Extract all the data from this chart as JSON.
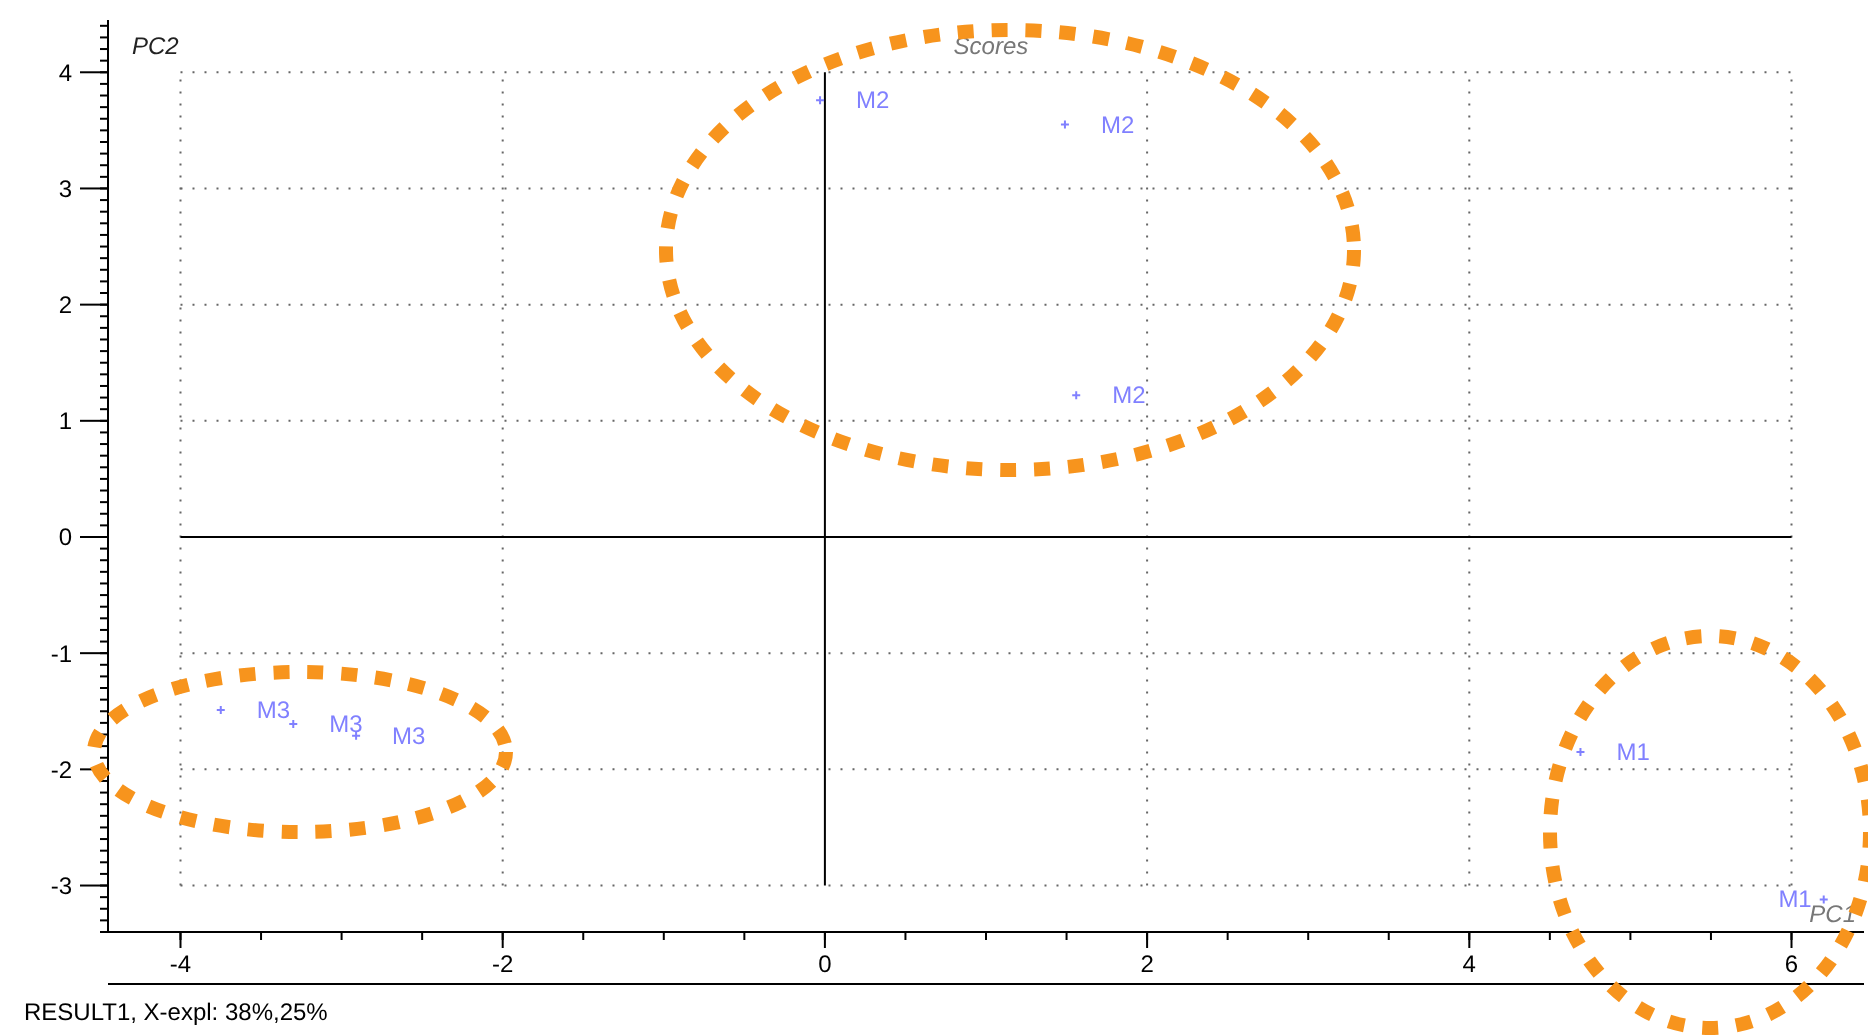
{
  "chart_data": {
    "type": "scatter",
    "title": "Scores",
    "xlabel": "PC1",
    "ylabel": "PC2",
    "annotations": [
      "RESULT1, X-expl: 38%,25%"
    ],
    "series": [
      {
        "name": "M1",
        "color": "#8080ff",
        "x": [
          4.69,
          6.2
        ],
        "values": [
          -1.85,
          -3.12
        ]
      },
      {
        "name": "M2",
        "color": "#8080ff",
        "x": [
          -0.03,
          1.49,
          1.56
        ],
        "values": [
          3.76,
          3.55,
          1.22
        ]
      },
      {
        "name": "M3",
        "color": "#8080ff",
        "x": [
          -3.75,
          -3.3,
          -2.91
        ],
        "values": [
          -1.49,
          -1.61,
          -1.71
        ]
      }
    ],
    "marker": "cross",
    "xlim": [
      -4.45,
      6.45
    ],
    "ylim": [
      -3.4,
      4.45
    ],
    "xticks": [
      -4,
      -2,
      0,
      2,
      4,
      6
    ],
    "yticks": [
      -3,
      -2,
      -1,
      0,
      1,
      2,
      3,
      4
    ],
    "grid": true,
    "legend": false
  }
}
